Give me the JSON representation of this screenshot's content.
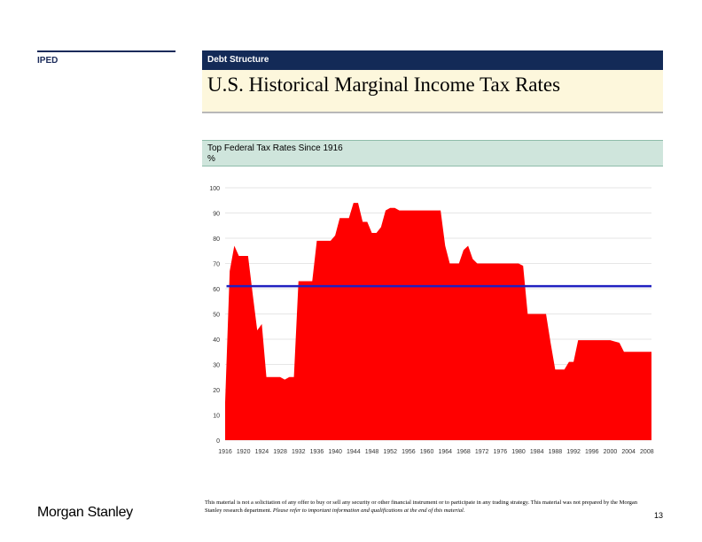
{
  "section_label": "IPED",
  "header": {
    "label": "Debt Structure"
  },
  "page_title": "U.S. Historical Marginal Income Tax Rates",
  "subtitle": {
    "line1": "Top Federal Tax Rates Since 1916",
    "line2": "%"
  },
  "footer": {
    "logo": "Morgan Stanley",
    "disclaimer_1": "This material is not a solicitation of any offer to buy or sell any security or other financial instrument or to participate in any trading strategy.  This material was not prepared by the Morgan Stanley research department.",
    "disclaimer_2": "Please refer to important information and qualifications at the end of this material.",
    "page_number": "13"
  },
  "colors": {
    "area": "#ff0000",
    "average_line": "#2020c0",
    "header_bg": "#132a57"
  },
  "chart_data": {
    "type": "area",
    "title": "Top Federal Tax Rates Since 1916",
    "ylabel": "%",
    "ylim": [
      0,
      100
    ],
    "xlim": [
      1916,
      2009
    ],
    "yticks": [
      0,
      10,
      20,
      30,
      40,
      50,
      60,
      70,
      80,
      90,
      100
    ],
    "xticks": [
      1916,
      1920,
      1924,
      1928,
      1932,
      1936,
      1940,
      1944,
      1948,
      1952,
      1956,
      1960,
      1964,
      1968,
      1972,
      1976,
      1980,
      1984,
      1988,
      1992,
      1996,
      2000,
      2004,
      2008
    ],
    "xtick_labels": [
      "1916",
      "1920",
      "1924",
      "1928",
      "1932",
      "1936",
      "1940",
      "1944",
      "1948",
      "1952",
      "1956",
      "1960",
      "1964",
      "1968",
      "1972",
      "1976",
      "1980",
      "1984",
      "1988",
      "1992",
      "1996",
      "2000",
      "2004",
      "2008"
    ],
    "grid": true,
    "series": [
      {
        "x": [
          1916,
          1917,
          1918,
          1919,
          1920,
          1921,
          1922,
          1923,
          1924,
          1925,
          1926,
          1927,
          1928,
          1929,
          1930,
          1931,
          1932,
          1933,
          1934,
          1935,
          1936,
          1937,
          1938,
          1939,
          1940,
          1941,
          1942,
          1943,
          1944,
          1945,
          1946,
          1947,
          1948,
          1949,
          1950,
          1951,
          1952,
          1953,
          1954,
          1955,
          1956,
          1957,
          1958,
          1959,
          1960,
          1961,
          1962,
          1963,
          1964,
          1965,
          1966,
          1967,
          1968,
          1969,
          1970,
          1971,
          1972,
          1973,
          1974,
          1975,
          1976,
          1977,
          1978,
          1979,
          1980,
          1981,
          1982,
          1983,
          1984,
          1985,
          1986,
          1987,
          1988,
          1989,
          1990,
          1991,
          1992,
          1993,
          1994,
          1995,
          1996,
          1997,
          1998,
          1999,
          2000,
          2001,
          2002,
          2003,
          2004,
          2005,
          2006,
          2007,
          2008,
          2009
        ],
        "values": [
          15,
          67,
          77,
          73,
          73,
          73,
          58,
          43.5,
          46,
          25,
          25,
          25,
          25,
          24,
          25,
          25,
          63,
          63,
          63,
          63,
          79,
          79,
          79,
          79,
          81.1,
          88,
          88,
          88,
          94,
          94,
          86.5,
          86.5,
          82.1,
          82.1,
          84.4,
          91,
          92,
          92,
          91,
          91,
          91,
          91,
          91,
          91,
          91,
          91,
          91,
          91,
          77,
          70,
          70,
          70,
          75.3,
          77,
          71.8,
          70,
          70,
          70,
          70,
          70,
          70,
          70,
          70,
          70,
          70,
          69.1,
          50,
          50,
          50,
          50,
          50,
          38.5,
          28,
          28,
          28,
          31,
          31,
          39.6,
          39.6,
          39.6,
          39.6,
          39.6,
          39.6,
          39.6,
          39.6,
          39.1,
          38.6,
          35,
          35,
          35,
          35,
          35,
          35,
          35
        ]
      }
    ],
    "average_line": 61
  }
}
